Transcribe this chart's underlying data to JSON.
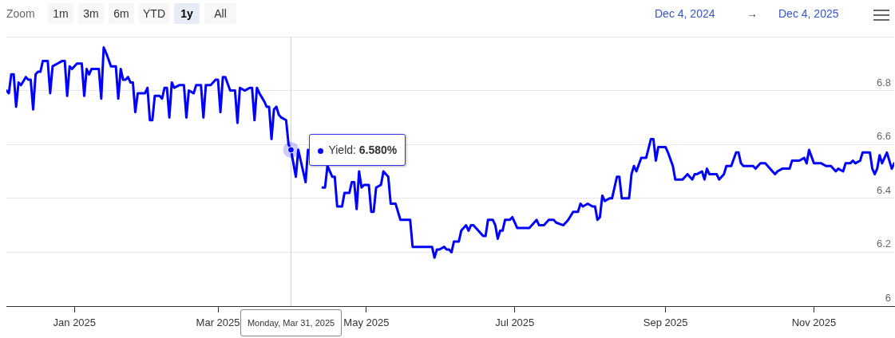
{
  "chart_data": {
    "type": "line",
    "annotations": [
      "Zoom",
      "1m",
      "3m",
      "6m",
      "YTD",
      "1y",
      "All",
      "Dec 4, 2024",
      "→",
      "Dec 4, 2025",
      "6.580%",
      "Monday, Mar 31, 2025"
    ],
    "xlim": [
      "2024-12-04",
      "2025-12-04"
    ],
    "xticks": [
      {
        "value": "2025-01-01",
        "label": "Jan 2025"
      },
      {
        "value": "2025-03-01",
        "label": "Mar 2025"
      },
      {
        "value": "2025-05-01",
        "label": "May 2025"
      },
      {
        "value": "2025-07-01",
        "label": "Jul 2025"
      },
      {
        "value": "2025-09-01",
        "label": "Sep 2025"
      },
      {
        "value": "2025-11-01",
        "label": "Nov 2025"
      }
    ],
    "ylim": [
      6,
      7
    ],
    "yticks": [
      6,
      6.2,
      6.4,
      6.6,
      6.8,
      {
        "value": 7,
        "label": null
      }
    ],
    "grid": "y",
    "legend": "top left",
    "marker": "none",
    "ref_lines": [
      {
        "axis": "x",
        "value": "2025-03-31",
        "color": "#cccccc"
      }
    ],
    "series": [
      {
        "name": "Yield:",
        "color": "#0000ff",
        "x": [
          "2024-12-04",
          "2024-12-05",
          "2024-12-06",
          "2024-12-07",
          "2024-12-08",
          "2024-12-09",
          "2024-12-10",
          "2024-12-12",
          "2024-12-13",
          "2024-12-14",
          "2024-12-15",
          "2024-12-16",
          "2024-12-17",
          "2024-12-18",
          "2024-12-19",
          "2024-12-21",
          "2024-12-22",
          "2024-12-23",
          "2024-12-25",
          "2024-12-27",
          "2024-12-28",
          "2024-12-29",
          "2024-12-30",
          "2024-12-31",
          "2025-01-02",
          "2025-01-04",
          "2025-01-05",
          "2025-01-06",
          "2025-01-07",
          "2025-01-08",
          "2025-01-11",
          "2025-01-12",
          "2025-01-13",
          "2025-01-14",
          "2025-01-16",
          "2025-01-17",
          "2025-01-18",
          "2025-01-19",
          "2025-01-20",
          "2025-01-21",
          "2025-01-22",
          "2025-01-23",
          "2025-01-24",
          "2025-01-25",
          "2025-01-26",
          "2025-01-27",
          "2025-01-30",
          "2025-01-31",
          "2025-02-01",
          "2025-02-02",
          "2025-02-03",
          "2025-02-05",
          "2025-02-06",
          "2025-02-07",
          "2025-02-08",
          "2025-02-09",
          "2025-02-10",
          "2025-02-11",
          "2025-02-13",
          "2025-02-15",
          "2025-02-16",
          "2025-02-17",
          "2025-02-19",
          "2025-02-20",
          "2025-02-22",
          "2025-02-23",
          "2025-02-24",
          "2025-02-26",
          "2025-02-28",
          "2025-03-01",
          "2025-03-02",
          "2025-03-03",
          "2025-03-04",
          "2025-03-06",
          "2025-03-08",
          "2025-03-09",
          "2025-03-10",
          "2025-03-12",
          "2025-03-14",
          "2025-03-15",
          "2025-03-16",
          "2025-03-17",
          "2025-03-18",
          "2025-03-20",
          "2025-03-21",
          "2025-03-22",
          "2025-03-23",
          "2025-03-24",
          "2025-03-25",
          "2025-03-26",
          "2025-03-27",
          "2025-03-29",
          "2025-03-30",
          "2025-03-31",
          "2025-04-02",
          "2025-04-03",
          "2025-04-06",
          "2025-04-07",
          "2025-04-10",
          "2025-04-13",
          "2025-04-14",
          "2025-04-15",
          "2025-04-17",
          "2025-04-18",
          "2025-04-19",
          "2025-04-21",
          "2025-04-22",
          "2025-04-24",
          "2025-04-25",
          "2025-04-26",
          "2025-04-27",
          "2025-04-28",
          "2025-04-29",
          "2025-04-30",
          "2025-05-02",
          "2025-05-03",
          "2025-05-04",
          "2025-05-05",
          "2025-05-07",
          "2025-05-08",
          "2025-05-10",
          "2025-05-11",
          "2025-05-13",
          "2025-05-14",
          "2025-05-15",
          "2025-05-19",
          "2025-05-20",
          "2025-05-28",
          "2025-05-29",
          "2025-05-30",
          "2025-05-31",
          "2025-06-02",
          "2025-06-03",
          "2025-06-04",
          "2025-06-05",
          "2025-06-06",
          "2025-06-08",
          "2025-06-09",
          "2025-06-11",
          "2025-06-12",
          "2025-06-13",
          "2025-06-14",
          "2025-06-16",
          "2025-06-18",
          "2025-06-19",
          "2025-06-20",
          "2025-06-22",
          "2025-06-23",
          "2025-06-24",
          "2025-06-25",
          "2025-06-26",
          "2025-06-27",
          "2025-06-29",
          "2025-06-30",
          "2025-07-02",
          "2025-07-04",
          "2025-07-06",
          "2025-07-07",
          "2025-07-10",
          "2025-07-11",
          "2025-07-13",
          "2025-07-15",
          "2025-07-17",
          "2025-07-18",
          "2025-07-21",
          "2025-07-23",
          "2025-07-25",
          "2025-07-27",
          "2025-07-28",
          "2025-07-29",
          "2025-07-31",
          "2025-08-02",
          "2025-08-03",
          "2025-08-04",
          "2025-08-05",
          "2025-08-06",
          "2025-08-07",
          "2025-08-09",
          "2025-08-10",
          "2025-08-12",
          "2025-08-13",
          "2025-08-14",
          "2025-08-17",
          "2025-08-18",
          "2025-08-19",
          "2025-08-20",
          "2025-08-22",
          "2025-08-24",
          "2025-08-26",
          "2025-08-27",
          "2025-08-28",
          "2025-08-29",
          "2025-09-01",
          "2025-09-02",
          "2025-09-04",
          "2025-09-05",
          "2025-09-08",
          "2025-09-10",
          "2025-09-12",
          "2025-09-13",
          "2025-09-14",
          "2025-09-16",
          "2025-09-17",
          "2025-09-18",
          "2025-09-19",
          "2025-09-22",
          "2025-09-23",
          "2025-09-25",
          "2025-09-26",
          "2025-09-28",
          "2025-09-30",
          "2025-10-01",
          "2025-10-02",
          "2025-10-03",
          "2025-10-05",
          "2025-10-07",
          "2025-10-08",
          "2025-10-10",
          "2025-10-12",
          "2025-10-13",
          "2025-10-16",
          "2025-10-17",
          "2025-10-19",
          "2025-10-22",
          "2025-10-23",
          "2025-10-25",
          "2025-10-26",
          "2025-10-28",
          "2025-10-29",
          "2025-10-30",
          "2025-11-01",
          "2025-11-03",
          "2025-11-04",
          "2025-11-06",
          "2025-11-08",
          "2025-11-10",
          "2025-11-11",
          "2025-11-13",
          "2025-11-14",
          "2025-11-16",
          "2025-11-17",
          "2025-11-18",
          "2025-11-20",
          "2025-11-21",
          "2025-11-24",
          "2025-11-25",
          "2025-11-26",
          "2025-11-27",
          "2025-11-28",
          "2025-11-29",
          "2025-12-01",
          "2025-12-03",
          "2025-12-04"
        ],
        "values": [
          6.8,
          6.79,
          6.86,
          6.86,
          6.74,
          6.83,
          6.82,
          6.85,
          6.84,
          6.84,
          6.73,
          6.86,
          6.87,
          6.87,
          6.91,
          6.91,
          6.79,
          6.89,
          6.9,
          6.91,
          6.91,
          6.78,
          6.89,
          6.88,
          6.9,
          6.9,
          6.78,
          6.88,
          6.86,
          6.88,
          6.88,
          6.77,
          6.96,
          6.94,
          6.89,
          6.89,
          6.89,
          6.77,
          6.88,
          6.84,
          6.84,
          6.85,
          6.83,
          6.83,
          6.72,
          6.79,
          6.79,
          6.81,
          6.69,
          6.69,
          6.78,
          6.78,
          6.77,
          6.81,
          6.81,
          6.7,
          6.83,
          6.81,
          6.82,
          6.82,
          6.7,
          6.8,
          6.79,
          6.82,
          6.82,
          6.7,
          6.82,
          6.82,
          6.84,
          6.84,
          6.72,
          6.85,
          6.85,
          6.8,
          6.8,
          6.68,
          6.81,
          6.8,
          6.81,
          6.81,
          6.69,
          6.81,
          6.79,
          6.76,
          6.74,
          6.74,
          6.62,
          6.73,
          6.74,
          6.71,
          6.7,
          6.69,
          6.6,
          6.58,
          6.48,
          6.58,
          6.46,
          6.58,
          null,
          6.44,
          6.44,
          6.52,
          6.48,
          6.48,
          6.37,
          6.37,
          6.42,
          6.42,
          6.46,
          6.46,
          6.36,
          6.5,
          6.44,
          6.45,
          6.45,
          6.35,
          6.35,
          6.44,
          6.45,
          6.5,
          6.48,
          6.38,
          6.38,
          6.35,
          6.32,
          6.32,
          6.22,
          6.22,
          6.18,
          6.21,
          6.21,
          6.22,
          6.21,
          6.21,
          6.2,
          6.24,
          6.24,
          6.28,
          6.3,
          6.28,
          6.3,
          6.3,
          6.28,
          6.26,
          6.26,
          6.32,
          6.32,
          6.3,
          6.25,
          6.28,
          6.28,
          6.32,
          6.32,
          6.33,
          6.29,
          6.29,
          6.29,
          6.29,
          6.32,
          6.3,
          6.3,
          6.32,
          6.32,
          6.31,
          6.3,
          6.32,
          6.35,
          6.35,
          6.38,
          6.37,
          6.38,
          6.37,
          6.37,
          6.32,
          6.33,
          6.41,
          6.39,
          6.4,
          6.4,
          6.48,
          6.48,
          6.4,
          6.4,
          6.49,
          6.52,
          6.5,
          6.55,
          6.55,
          6.62,
          6.62,
          6.54,
          6.59,
          6.59,
          6.57,
          6.52,
          6.47,
          6.47,
          6.49,
          6.47,
          6.49,
          6.49,
          6.5,
          6.47,
          6.51,
          6.49,
          6.49,
          6.47,
          6.49,
          6.52,
          6.52,
          6.57,
          6.57,
          6.53,
          6.52,
          6.52,
          6.52,
          6.51,
          6.53,
          6.53,
          6.52,
          6.49,
          6.5,
          6.51,
          6.51,
          6.54,
          6.54,
          6.54,
          6.55,
          6.53,
          6.58,
          6.53,
          6.53,
          6.53,
          6.52,
          6.52,
          6.5,
          6.51,
          6.5,
          6.53,
          6.53,
          6.54,
          6.53,
          6.54,
          6.57,
          6.57,
          6.51,
          6.49,
          6.51,
          6.56,
          6.53,
          6.57,
          6.51,
          6.53
        ]
      }
    ]
  }
}
